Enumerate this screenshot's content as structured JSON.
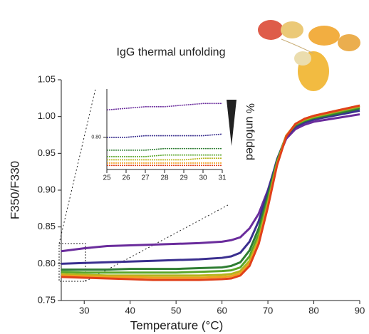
{
  "chart_data": [
    {
      "type": "line",
      "title": "IgG thermal unfolding",
      "xlabel": "Temperature (°C)",
      "ylabel": "F350/F330",
      "x": [
        25,
        30,
        35,
        40,
        45,
        50,
        55,
        60,
        62,
        64,
        66,
        68,
        70,
        72,
        74,
        76,
        78,
        80,
        85,
        90
      ],
      "xlim": [
        25,
        90
      ],
      "xticks": [
        30,
        40,
        50,
        60,
        70,
        80,
        90
      ],
      "ylim": [
        0.75,
        1.05
      ],
      "yticks": [
        {
          "value": 0.75,
          "label": "0.75"
        },
        {
          "value": 0.8,
          "label": "0.80"
        },
        {
          "value": 0.85,
          "label": "0.85"
        },
        {
          "value": 0.9,
          "label": "0.90"
        },
        {
          "value": 0.95,
          "label": "0.95"
        },
        {
          "value": 1.0,
          "label": "1.00"
        },
        {
          "value": 1.05,
          "label": "1.05"
        }
      ],
      "series": [
        {
          "color": "#6a2c9c",
          "values": [
            0.817,
            0.821,
            0.824,
            0.825,
            0.826,
            0.827,
            0.828,
            0.83,
            0.832,
            0.836,
            0.848,
            0.868,
            0.9,
            0.94,
            0.97,
            0.983,
            0.989,
            0.993,
            0.998,
            1.003
          ]
        },
        {
          "color": "#3a2f8f",
          "values": [
            0.8,
            0.801,
            0.802,
            0.803,
            0.804,
            0.805,
            0.806,
            0.808,
            0.81,
            0.815,
            0.83,
            0.858,
            0.898,
            0.942,
            0.973,
            0.986,
            0.992,
            0.996,
            1.002,
            1.008
          ]
        },
        {
          "color": "#2e7d32",
          "values": [
            0.792,
            0.792,
            0.792,
            0.793,
            0.793,
            0.793,
            0.794,
            0.795,
            0.797,
            0.802,
            0.818,
            0.848,
            0.892,
            0.94,
            0.974,
            0.988,
            0.994,
            0.998,
            1.004,
            1.011
          ]
        },
        {
          "color": "#5aa62a",
          "values": [
            0.789,
            0.788,
            0.788,
            0.788,
            0.788,
            0.788,
            0.789,
            0.79,
            0.791,
            0.795,
            0.81,
            0.84,
            0.886,
            0.938,
            0.974,
            0.989,
            0.995,
            0.999,
            1.006,
            1.013
          ]
        },
        {
          "color": "#b5b51c",
          "values": [
            0.786,
            0.785,
            0.784,
            0.784,
            0.784,
            0.784,
            0.784,
            0.785,
            0.786,
            0.79,
            0.804,
            0.834,
            0.882,
            0.936,
            0.974,
            0.99,
            0.996,
            1.0,
            1.007,
            1.014
          ]
        },
        {
          "color": "#f0a020",
          "values": [
            0.784,
            0.783,
            0.782,
            0.782,
            0.781,
            0.781,
            0.781,
            0.782,
            0.783,
            0.787,
            0.8,
            0.83,
            0.879,
            0.935,
            0.974,
            0.99,
            0.997,
            1.001,
            1.008,
            1.015
          ]
        },
        {
          "color": "#e0401a",
          "values": [
            0.782,
            0.781,
            0.78,
            0.779,
            0.778,
            0.778,
            0.778,
            0.779,
            0.78,
            0.784,
            0.797,
            0.827,
            0.877,
            0.934,
            0.973,
            0.99,
            0.997,
            1.001,
            1.008,
            1.015
          ]
        }
      ]
    },
    {
      "type": "line",
      "annotation": "% unfolded",
      "x": [
        25,
        26,
        27,
        28,
        29,
        30,
        31
      ],
      "xlim": [
        25,
        31
      ],
      "xticks": [
        25,
        26,
        27,
        28,
        29,
        30,
        31
      ],
      "ylim": [
        0.78,
        0.83
      ],
      "yticks": [
        {
          "value": 0.8,
          "label": "0.80"
        }
      ],
      "series": [
        {
          "color": "#6a2c9c",
          "values": [
            0.817,
            0.818,
            0.819,
            0.819,
            0.82,
            0.821,
            0.821
          ]
        },
        {
          "color": "#3a2f8f",
          "values": [
            0.8,
            0.8,
            0.801,
            0.801,
            0.801,
            0.801,
            0.802
          ]
        },
        {
          "color": "#2e7d32",
          "values": [
            0.792,
            0.792,
            0.792,
            0.793,
            0.793,
            0.793,
            0.793
          ]
        },
        {
          "color": "#5aa62a",
          "values": [
            0.788,
            0.788,
            0.788,
            0.789,
            0.789,
            0.789,
            0.789
          ]
        },
        {
          "color": "#b5b51c",
          "values": [
            0.786,
            0.786,
            0.786,
            0.786,
            0.786,
            0.787,
            0.787
          ]
        },
        {
          "color": "#f0a020",
          "values": [
            0.784,
            0.784,
            0.784,
            0.784,
            0.784,
            0.784,
            0.784
          ]
        },
        {
          "color": "#e0401a",
          "values": [
            0.7825,
            0.7825,
            0.7825,
            0.7825,
            0.7825,
            0.7825,
            0.7825
          ]
        }
      ]
    }
  ]
}
